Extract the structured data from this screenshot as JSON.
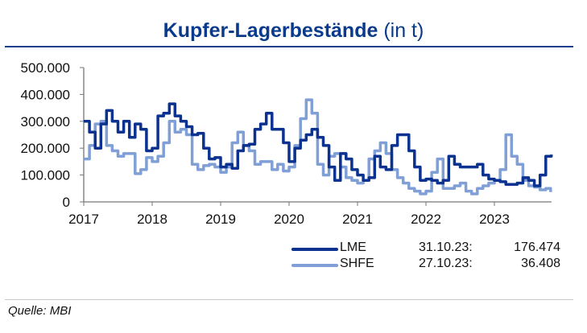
{
  "chart_data": {
    "type": "line",
    "title": "Kupfer-Lagerbestände",
    "title_unit": "(in t)",
    "xlabel": "",
    "ylabel": "",
    "ylim": [
      0,
      500000
    ],
    "xlim": [
      "2017-01",
      "2023-11"
    ],
    "yticks": [
      "0",
      "100.000",
      "200.000",
      "300.000",
      "400.000",
      "500.000"
    ],
    "ytick_values": [
      0,
      100000,
      200000,
      300000,
      400000,
      500000
    ],
    "xticks": [
      "2017",
      "2018",
      "2019",
      "2020",
      "2021",
      "2022",
      "2023"
    ],
    "grid": false,
    "legend_position": "bottom-right",
    "series": [
      {
        "name": "LME",
        "color": "#0b3290",
        "last_date": "31.10.23:",
        "last_value": "176.474",
        "points": [
          [
            "2017-01",
            300000
          ],
          [
            "2017-02",
            260000
          ],
          [
            "2017-03",
            200000
          ],
          [
            "2017-04",
            290000
          ],
          [
            "2017-05",
            340000
          ],
          [
            "2017-06",
            300000
          ],
          [
            "2017-07",
            260000
          ],
          [
            "2017-08",
            300000
          ],
          [
            "2017-09",
            240000
          ],
          [
            "2017-10",
            290000
          ],
          [
            "2017-11",
            270000
          ],
          [
            "2017-12",
            190000
          ],
          [
            "2018-01",
            200000
          ],
          [
            "2018-02",
            320000
          ],
          [
            "2018-03",
            330000
          ],
          [
            "2018-04",
            365000
          ],
          [
            "2018-05",
            320000
          ],
          [
            "2018-06",
            300000
          ],
          [
            "2018-07",
            280000
          ],
          [
            "2018-08",
            250000
          ],
          [
            "2018-09",
            255000
          ],
          [
            "2018-10",
            200000
          ],
          [
            "2018-11",
            160000
          ],
          [
            "2018-12",
            165000
          ],
          [
            "2019-01",
            130000
          ],
          [
            "2019-02",
            140000
          ],
          [
            "2019-03",
            125000
          ],
          [
            "2019-04",
            190000
          ],
          [
            "2019-05",
            210000
          ],
          [
            "2019-06",
            215000
          ],
          [
            "2019-07",
            270000
          ],
          [
            "2019-08",
            290000
          ],
          [
            "2019-09",
            330000
          ],
          [
            "2019-10",
            270000
          ],
          [
            "2019-11",
            270000
          ],
          [
            "2019-12",
            220000
          ],
          [
            "2020-01",
            150000
          ],
          [
            "2020-02",
            200000
          ],
          [
            "2020-03",
            230000
          ],
          [
            "2020-04",
            250000
          ],
          [
            "2020-05",
            270000
          ],
          [
            "2020-06",
            240000
          ],
          [
            "2020-07",
            210000
          ],
          [
            "2020-08",
            130000
          ],
          [
            "2020-09",
            80000
          ],
          [
            "2020-10",
            180000
          ],
          [
            "2020-11",
            160000
          ],
          [
            "2020-12",
            120000
          ],
          [
            "2021-01",
            100000
          ],
          [
            "2021-02",
            80000
          ],
          [
            "2021-03",
            90000
          ],
          [
            "2021-04",
            170000
          ],
          [
            "2021-05",
            130000
          ],
          [
            "2021-06",
            120000
          ],
          [
            "2021-07",
            210000
          ],
          [
            "2021-08",
            250000
          ],
          [
            "2021-09",
            250000
          ],
          [
            "2021-10",
            190000
          ],
          [
            "2021-11",
            130000
          ],
          [
            "2021-12",
            80000
          ],
          [
            "2022-01",
            85000
          ],
          [
            "2022-02",
            80000
          ],
          [
            "2022-03",
            70000
          ],
          [
            "2022-04",
            80000
          ],
          [
            "2022-05",
            170000
          ],
          [
            "2022-06",
            140000
          ],
          [
            "2022-07",
            130000
          ],
          [
            "2022-08",
            130000
          ],
          [
            "2022-09",
            130000
          ],
          [
            "2022-10",
            140000
          ],
          [
            "2022-11",
            100000
          ],
          [
            "2022-12",
            85000
          ],
          [
            "2023-01",
            80000
          ],
          [
            "2023-02",
            75000
          ],
          [
            "2023-03",
            65000
          ],
          [
            "2023-04",
            65000
          ],
          [
            "2023-05",
            70000
          ],
          [
            "2023-06",
            90000
          ],
          [
            "2023-07",
            80000
          ],
          [
            "2023-08",
            60000
          ],
          [
            "2023-09",
            100000
          ],
          [
            "2023-10",
            170000
          ],
          [
            "2023-10-31",
            176474
          ]
        ]
      },
      {
        "name": "SHFE",
        "color": "#7f9fd6",
        "last_date": "27.10.23:",
        "last_value": "36.408",
        "points": [
          [
            "2017-01",
            160000
          ],
          [
            "2017-02",
            210000
          ],
          [
            "2017-03",
            290000
          ],
          [
            "2017-04",
            300000
          ],
          [
            "2017-05",
            210000
          ],
          [
            "2017-06",
            190000
          ],
          [
            "2017-07",
            170000
          ],
          [
            "2017-08",
            180000
          ],
          [
            "2017-09",
            180000
          ],
          [
            "2017-10",
            105000
          ],
          [
            "2017-11",
            120000
          ],
          [
            "2017-12",
            165000
          ],
          [
            "2018-01",
            150000
          ],
          [
            "2018-02",
            170000
          ],
          [
            "2018-03",
            220000
          ],
          [
            "2018-04",
            300000
          ],
          [
            "2018-05",
            260000
          ],
          [
            "2018-06",
            270000
          ],
          [
            "2018-07",
            250000
          ],
          [
            "2018-08",
            140000
          ],
          [
            "2018-09",
            120000
          ],
          [
            "2018-10",
            135000
          ],
          [
            "2018-11",
            140000
          ],
          [
            "2018-12",
            130000
          ],
          [
            "2019-01",
            110000
          ],
          [
            "2019-02",
            130000
          ],
          [
            "2019-03",
            220000
          ],
          [
            "2019-04",
            260000
          ],
          [
            "2019-05",
            210000
          ],
          [
            "2019-06",
            190000
          ],
          [
            "2019-07",
            140000
          ],
          [
            "2019-08",
            150000
          ],
          [
            "2019-09",
            150000
          ],
          [
            "2019-10",
            120000
          ],
          [
            "2019-11",
            140000
          ],
          [
            "2019-12",
            115000
          ],
          [
            "2020-01",
            130000
          ],
          [
            "2020-02",
            210000
          ],
          [
            "2020-03",
            310000
          ],
          [
            "2020-04",
            380000
          ],
          [
            "2020-05",
            330000
          ],
          [
            "2020-06",
            140000
          ],
          [
            "2020-07",
            100000
          ],
          [
            "2020-08",
            170000
          ],
          [
            "2020-09",
            180000
          ],
          [
            "2020-10",
            130000
          ],
          [
            "2020-11",
            90000
          ],
          [
            "2020-12",
            80000
          ],
          [
            "2021-01",
            70000
          ],
          [
            "2021-02",
            80000
          ],
          [
            "2021-03",
            160000
          ],
          [
            "2021-04",
            190000
          ],
          [
            "2021-05",
            220000
          ],
          [
            "2021-06",
            180000
          ],
          [
            "2021-07",
            120000
          ],
          [
            "2021-08",
            90000
          ],
          [
            "2021-09",
            70000
          ],
          [
            "2021-10",
            50000
          ],
          [
            "2021-11",
            40000
          ],
          [
            "2021-12",
            30000
          ],
          [
            "2022-01",
            40000
          ],
          [
            "2022-02",
            110000
          ],
          [
            "2022-03",
            160000
          ],
          [
            "2022-04",
            50000
          ],
          [
            "2022-05",
            50000
          ],
          [
            "2022-06",
            60000
          ],
          [
            "2022-07",
            70000
          ],
          [
            "2022-08",
            40000
          ],
          [
            "2022-09",
            30000
          ],
          [
            "2022-10",
            50000
          ],
          [
            "2022-11",
            60000
          ],
          [
            "2022-12",
            70000
          ],
          [
            "2023-01",
            80000
          ],
          [
            "2023-02",
            120000
          ],
          [
            "2023-03",
            250000
          ],
          [
            "2023-04",
            170000
          ],
          [
            "2023-05",
            140000
          ],
          [
            "2023-06",
            80000
          ],
          [
            "2023-07",
            60000
          ],
          [
            "2023-08",
            55000
          ],
          [
            "2023-09",
            45000
          ],
          [
            "2023-10",
            50000
          ],
          [
            "2023-10-27",
            36408
          ]
        ]
      }
    ]
  },
  "source": "Quelle: MBI"
}
